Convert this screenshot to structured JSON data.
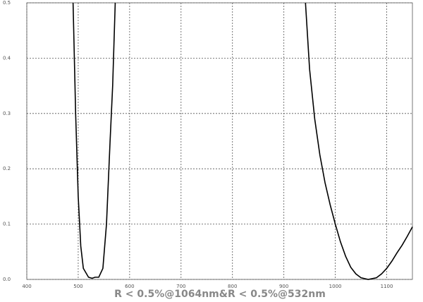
{
  "chart_data": {
    "type": "line",
    "title": "R < 0.5%@1064nm&R < 0.5%@532nm",
    "x": [
      490,
      495,
      500,
      505,
      510,
      520,
      527,
      533,
      540,
      548,
      555,
      562,
      567,
      572,
      700,
      942,
      950,
      960,
      970,
      980,
      990,
      1000,
      1010,
      1020,
      1030,
      1040,
      1050,
      1064,
      1080,
      1090,
      1100,
      1110,
      1120,
      1130,
      1140,
      1150
    ],
    "series": [
      {
        "color": "#000000",
        "values": [
          0.5,
          0.3,
          0.15,
          0.06,
          0.02,
          0.004,
          0.002,
          0.004,
          0.004,
          0.02,
          0.1,
          0.25,
          0.35,
          0.5,
          null,
          0.5,
          0.38,
          0.29,
          0.225,
          0.175,
          0.135,
          0.1,
          0.068,
          0.042,
          0.022,
          0.01,
          0.003,
          0.0,
          0.003,
          0.01,
          0.02,
          0.033,
          0.048,
          0.062,
          0.078,
          0.095
        ]
      }
    ],
    "xlim": [
      400,
      1150
    ],
    "xticks": [
      400,
      500,
      600,
      700,
      800,
      900,
      1000,
      1100
    ],
    "ylim": [
      0,
      0.5
    ],
    "yticks": [
      {
        "value": 0,
        "label": "0.0"
      },
      0.1,
      0.2,
      0.3,
      0.4,
      0.5
    ],
    "grid": true
  }
}
